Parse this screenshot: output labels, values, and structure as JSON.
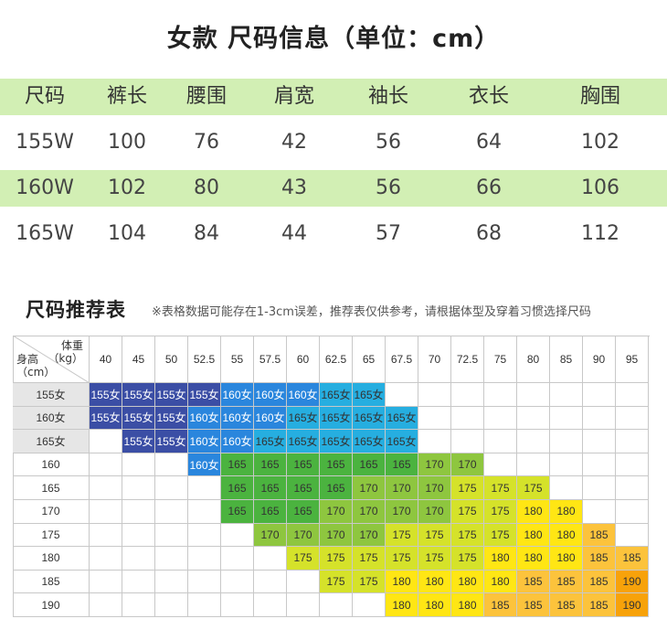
{
  "title": "女款  尺码信息（单位：cm）",
  "size_table": {
    "headers": [
      "尺码",
      "裤长",
      "腰围",
      "肩宽",
      "袖长",
      "衣长",
      "胸围"
    ],
    "rows": [
      [
        "155W",
        "100",
        "76",
        "42",
        "56",
        "64",
        "102"
      ],
      [
        "160W",
        "102",
        "80",
        "43",
        "56",
        "66",
        "106"
      ],
      [
        "165W",
        "104",
        "84",
        "44",
        "57",
        "68",
        "112"
      ]
    ]
  },
  "recommend": {
    "title": "尺码推荐表",
    "note": "※表格数据可能存在1-3cm误差，推荐表仅供参考，请根据体型及穿着习惯选择尺码",
    "corner_weight": "体重\n（kg）",
    "corner_height": "身高\n（cm）",
    "weights": [
      "40",
      "45",
      "50",
      "52.5",
      "55",
      "57.5",
      "60",
      "62.5",
      "65",
      "67.5",
      "70",
      "72.5",
      "75",
      "80",
      "85",
      "90",
      "95"
    ],
    "heights": [
      "155女",
      "160女",
      "165女",
      "160",
      "165",
      "170",
      "175",
      "180",
      "185",
      "190"
    ],
    "grid": [
      [
        "155女",
        "155女",
        "155女",
        "155女",
        "160女",
        "160女",
        "160女",
        "165女",
        "165女",
        "",
        "",
        "",
        "",
        "",
        "",
        "",
        ""
      ],
      [
        "155女",
        "155女",
        "155女",
        "160女",
        "160女",
        "160女",
        "165女",
        "165女",
        "165女",
        "165女",
        "",
        "",
        "",
        "",
        "",
        "",
        ""
      ],
      [
        "",
        "155女",
        "155女",
        "160女",
        "160女",
        "165女",
        "165女",
        "165女",
        "165女",
        "165女",
        "",
        "",
        "",
        "",
        "",
        "",
        ""
      ],
      [
        "",
        "",
        "",
        "160女",
        "165",
        "165",
        "165",
        "165",
        "165",
        "165",
        "170",
        "170",
        "",
        "",
        "",
        "",
        ""
      ],
      [
        "",
        "",
        "",
        "",
        "165",
        "165",
        "165",
        "165",
        "170",
        "170",
        "170",
        "175",
        "175",
        "175",
        "",
        "",
        ""
      ],
      [
        "",
        "",
        "",
        "",
        "165",
        "165",
        "165",
        "170",
        "170",
        "170",
        "170",
        "175",
        "175",
        "180",
        "180",
        "",
        ""
      ],
      [
        "",
        "",
        "",
        "",
        "",
        "170",
        "170",
        "170",
        "170",
        "175",
        "175",
        "175",
        "175",
        "180",
        "180",
        "185",
        ""
      ],
      [
        "",
        "",
        "",
        "",
        "",
        "",
        "175",
        "175",
        "175",
        "175",
        "175",
        "175",
        "180",
        "180",
        "180",
        "185",
        "185"
      ],
      [
        "",
        "",
        "",
        "",
        "",
        "",
        "",
        "175",
        "175",
        "180",
        "180",
        "180",
        "180",
        "185",
        "185",
        "185",
        "190"
      ],
      [
        "",
        "",
        "",
        "",
        "",
        "",
        "",
        "",
        "",
        "180",
        "180",
        "180",
        "185",
        "185",
        "185",
        "185",
        "190"
      ]
    ],
    "colors": {
      "155女": "#3b4ea5",
      "160女": "#2a86dd",
      "165女": "#26aee0",
      "165": "#4bb33f",
      "170": "#8ec63f",
      "175": "#d5e22a",
      "180": "#ffe614",
      "185": "#fcc33c",
      "190": "#f7a20a"
    },
    "dark_text": [
      "155女",
      "160女"
    ],
    "label_colored_rows": [
      "155女",
      "160女",
      "165女"
    ],
    "label_color": "#e6e6e6"
  }
}
